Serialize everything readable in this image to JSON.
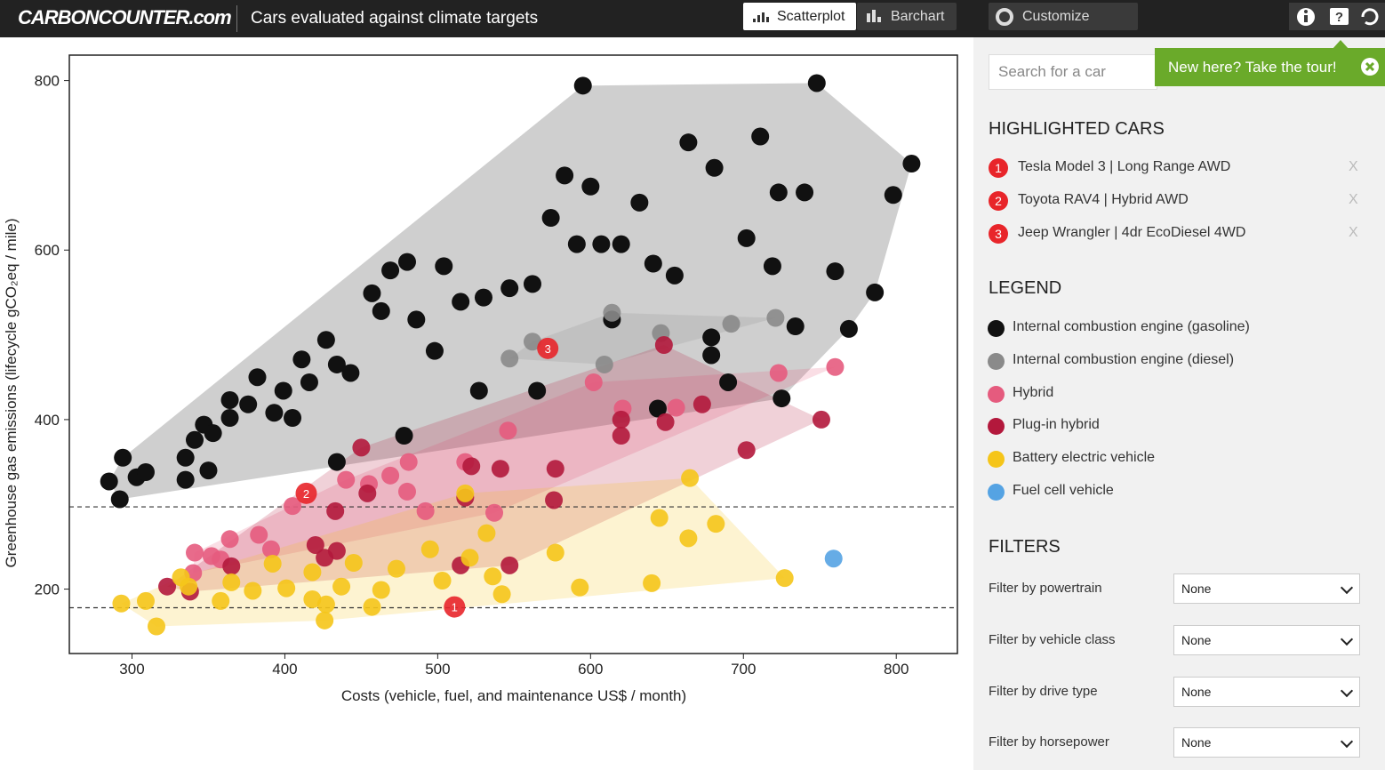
{
  "header": {
    "logo": "CARBONCOUNTER.com",
    "title": "Cars evaluated against climate targets",
    "buttons": [
      "Scatterplot",
      "Barchart",
      "Customize"
    ]
  },
  "chart_data": {
    "type": "scatter",
    "xlabel": "Costs (vehicle, fuel, and maintenance US$ / month)",
    "ylabel": "Greenhouse gas emissions (lifecycle gCO₂eq / mile)",
    "xlim": [
      259,
      840
    ],
    "ylim": [
      124,
      830
    ],
    "xticks": [
      300,
      400,
      500,
      600,
      700,
      800
    ],
    "yticks": [
      200,
      400,
      600,
      800
    ],
    "hlines": [
      297,
      178
    ],
    "series": [
      {
        "name": "Internal combustion engine (gasoline)",
        "color": "#111111",
        "x": [
          285,
          294,
          292,
          303,
          309,
          335,
          335,
          341,
          347,
          353,
          350,
          364,
          364,
          376,
          382,
          393,
          399,
          405,
          411,
          416,
          427,
          434,
          443,
          457,
          463,
          469,
          480,
          486,
          498,
          504,
          515,
          530,
          547,
          562,
          565,
          574,
          583,
          591,
          595,
          600,
          607,
          614,
          620,
          632,
          641,
          655,
          664,
          679,
          681,
          702,
          711,
          719,
          723,
          734,
          740,
          748,
          760,
          769,
          786,
          798,
          810,
          725,
          644,
          679,
          690,
          527,
          478,
          434
        ],
        "y": [
          327,
          355,
          306,
          332,
          338,
          329,
          355,
          376,
          394,
          384,
          340,
          402,
          423,
          418,
          450,
          408,
          434,
          402,
          471,
          444,
          494,
          465,
          455,
          549,
          528,
          576,
          586,
          518,
          481,
          581,
          539,
          544,
          555,
          560,
          434,
          638,
          688,
          607,
          794,
          675,
          607,
          518,
          607,
          656,
          584,
          570,
          727,
          497,
          697,
          614,
          734,
          581,
          668,
          510,
          668,
          797,
          575,
          507,
          550,
          665,
          702,
          425,
          413,
          476,
          444,
          434,
          381,
          350
        ]
      },
      {
        "name": "Internal combustion engine (diesel)",
        "color": "#8a8a8a",
        "x": [
          547,
          614,
          646,
          692,
          721,
          609,
          562
        ],
        "y": [
          472,
          526,
          502,
          513,
          520,
          465,
          492
        ]
      },
      {
        "name": "Hybrid",
        "color": "#e55b7e",
        "x": [
          341,
          352,
          364,
          383,
          391,
          405,
          440,
          455,
          469,
          480,
          481,
          492,
          518,
          537,
          546,
          602,
          621,
          656,
          723,
          760,
          340,
          358
        ],
        "y": [
          243,
          239,
          259,
          264,
          247,
          298,
          329,
          324,
          334,
          315,
          350,
          292,
          350,
          290,
          387,
          444,
          413,
          414,
          455,
          462,
          219,
          235
        ]
      },
      {
        "name": "Plug-in hybrid",
        "color": "#b3183c",
        "x": [
          323,
          338,
          365,
          420,
          426,
          434,
          433,
          450,
          454,
          515,
          518,
          522,
          541,
          547,
          576,
          577,
          620,
          620,
          649,
          673,
          702,
          751,
          648
        ],
        "y": [
          203,
          197,
          227,
          252,
          237,
          245,
          292,
          367,
          313,
          228,
          308,
          345,
          342,
          228,
          305,
          342,
          381,
          400,
          397,
          418,
          364,
          400,
          488
        ]
      },
      {
        "name": "Battery electric vehicle",
        "color": "#f5c519",
        "x": [
          293,
          309,
          316,
          332,
          337,
          358,
          365,
          379,
          392,
          401,
          418,
          418,
          427,
          426,
          437,
          445,
          457,
          463,
          473,
          495,
          503,
          521,
          532,
          536,
          542,
          577,
          593,
          640,
          645,
          664,
          665,
          682,
          727,
          518
        ],
        "y": [
          183,
          186,
          156,
          214,
          203,
          186,
          208,
          198,
          230,
          201,
          220,
          188,
          182,
          163,
          203,
          231,
          179,
          199,
          224,
          247,
          210,
          237,
          266,
          215,
          194,
          243,
          202,
          207,
          284,
          260,
          331,
          277,
          213,
          313
        ]
      },
      {
        "name": "Fuel cell vehicle",
        "color": "#55a3e3",
        "x": [
          759
        ],
        "y": [
          236
        ]
      }
    ],
    "highlights": [
      {
        "label": "1",
        "name": "Tesla Model 3 | Long Range AWD",
        "x": 511,
        "y": 179
      },
      {
        "label": "2",
        "name": "Toyota RAV4 | Hybrid AWD",
        "x": 414,
        "y": 313
      },
      {
        "label": "3",
        "name": "Jeep Wrangler | 4dr EcoDiesel 4WD",
        "x": 572,
        "y": 484
      }
    ],
    "highlight_color": "#e8252a"
  },
  "sidebar": {
    "search_placeholder": "Search for a car",
    "tour": "New here? Take the tour!",
    "highlighted_heading": "HIGHLIGHTED CARS",
    "remove": "X",
    "legend_heading": "LEGEND",
    "filters_heading": "FILTERS",
    "filters": [
      {
        "label": "Filter by powertrain",
        "value": "None"
      },
      {
        "label": "Filter by vehicle class",
        "value": "None"
      },
      {
        "label": "Filter by drive type",
        "value": "None"
      },
      {
        "label": "Filter by horsepower",
        "value": "None"
      }
    ]
  }
}
